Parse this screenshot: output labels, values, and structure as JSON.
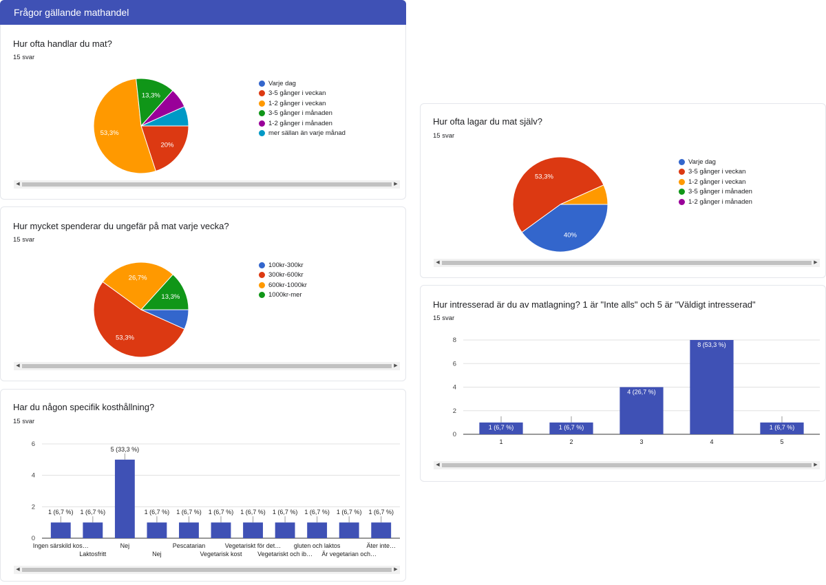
{
  "header": {
    "title": "Frågor gällande mathandel"
  },
  "colors": {
    "header": "#3f51b5",
    "bar": "#3f51b5"
  },
  "cards": {
    "c1": {
      "question": "Hur ofta handlar du mat?",
      "count": "15 svar"
    },
    "c2": {
      "question": "Hur mycket spenderar du ungefär på mat varje vecka?",
      "count": "15 svar"
    },
    "c3": {
      "question": "Har du någon specifik kosthållning?",
      "count": "15 svar"
    },
    "c4": {
      "question": "Hur ofta lagar du mat själv?",
      "count": "15 svar"
    },
    "c5": {
      "question": "Hur intresserad är du av matlagning? 1 är \"Inte alls\" och 5 är \"Väldigt intresserad\"",
      "count": "15 svar"
    }
  },
  "chart_data": [
    {
      "id": "c1",
      "type": "pie",
      "title": "Hur ofta handlar du mat?",
      "categories": [
        "Varje dag",
        "3-5 gånger i veckan",
        "1-2 gånger i veckan",
        "3-5 gånger i månaden",
        "1-2 gånger i månaden",
        "mer sällan än varje månad"
      ],
      "values": [
        0,
        20,
        53.3,
        13.3,
        6.7,
        6.7
      ],
      "colors": [
        "#3366cc",
        "#dc3912",
        "#ff9900",
        "#109618",
        "#990099",
        "#0099c6"
      ],
      "slice_labels": [
        "",
        "20%",
        "53,3%",
        "13,3%",
        "",
        ""
      ],
      "legend": "right"
    },
    {
      "id": "c2",
      "type": "pie",
      "title": "Hur mycket spenderar du ungefär på mat varje vecka?",
      "categories": [
        "100kr-300kr",
        "300kr-600kr",
        "600kr-1000kr",
        "1000kr-mer"
      ],
      "values": [
        6.7,
        53.3,
        26.7,
        13.3
      ],
      "colors": [
        "#3366cc",
        "#dc3912",
        "#ff9900",
        "#109618"
      ],
      "slice_labels": [
        "",
        "53,3%",
        "26,7%",
        "13,3%"
      ],
      "legend": "right"
    },
    {
      "id": "c3",
      "type": "bar",
      "title": "Har du någon specifik kosthållning?",
      "categories": [
        "Ingen särskild kos…",
        "Laktosfritt",
        "Nej",
        "Nej",
        "Pescatarian",
        "Vegetarisk kost",
        "Vegetariskt för det…",
        "Vegetariskt och ib…",
        "gluten och laktos",
        "Är vegetarian och…",
        "Äter inte…"
      ],
      "values": [
        1,
        1,
        5,
        1,
        1,
        1,
        1,
        1,
        1,
        1,
        1
      ],
      "value_labels": [
        "1 (6,7 %)",
        "1 (6,7 %)",
        "5 (33,3 %)",
        "1 (6,7 %)",
        "1 (6,7 %)",
        "1 (6,7 %)",
        "1 (6,7 %)",
        "1 (6,7 %)",
        "1 (6,7 %)",
        "1 (6,7 %)",
        "1 (6,7 %)"
      ],
      "yticks": [
        "0",
        "2",
        "4",
        "6"
      ],
      "ylim": [
        0,
        6
      ]
    },
    {
      "id": "c4",
      "type": "pie",
      "title": "Hur ofta lagar du mat själv?",
      "categories": [
        "Varje dag",
        "3-5 gånger i veckan",
        "1-2 gånger i veckan",
        "3-5 gånger i månaden",
        "1-2 gånger i månaden"
      ],
      "values": [
        40,
        53.3,
        6.7,
        0,
        0
      ],
      "colors": [
        "#3366cc",
        "#dc3912",
        "#ff9900",
        "#109618",
        "#990099"
      ],
      "slice_labels": [
        "40%",
        "53,3%",
        "",
        "",
        ""
      ],
      "legend": "right"
    },
    {
      "id": "c5",
      "type": "bar",
      "title": "Hur intresserad är du av matlagning? 1 är \"Inte alls\" och 5 är \"Väldigt intresserad\"",
      "categories": [
        "1",
        "2",
        "3",
        "4",
        "5"
      ],
      "values": [
        1,
        1,
        4,
        8,
        1
      ],
      "value_labels": [
        "1 (6,7 %)",
        "1 (6,7 %)",
        "4 (26,7 %)",
        "8 (53,3 %)",
        "1 (6,7 %)"
      ],
      "yticks": [
        "0",
        "2",
        "4",
        "6",
        "8"
      ],
      "ylim": [
        0,
        8
      ]
    }
  ]
}
